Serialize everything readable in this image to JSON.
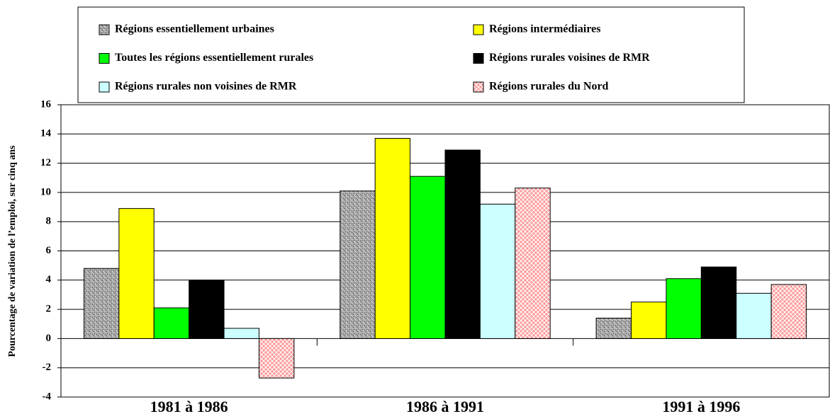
{
  "chart_data": {
    "type": "bar",
    "y_label": "Pourcentage de variation de l’emploi, sur cinq ans",
    "categories": [
      "1981 à 1986",
      "1986 à 1991",
      "1991 à 1996"
    ],
    "series": [
      {
        "name": "Régions essentiellement urbaines",
        "color": "#a6a6a6",
        "texture": "speckle",
        "values": [
          4.8,
          10.1,
          1.4
        ]
      },
      {
        "name": "Régions intermédiaires",
        "color": "#ffff00",
        "values": [
          8.9,
          13.7,
          2.5
        ]
      },
      {
        "name": "Toutes les régions essentiellement rurales",
        "color": "#00ff00",
        "values": [
          2.1,
          11.1,
          4.1
        ]
      },
      {
        "name": "Régions rurales voisines de RMR",
        "color": "#000000",
        "values": [
          4.0,
          12.9,
          4.9
        ]
      },
      {
        "name": "Régions rurales non voisines de RMR",
        "color": "#ccffff",
        "values": [
          0.7,
          9.2,
          3.1
        ]
      },
      {
        "name": "Régions rurales du Nord",
        "color": "#ff9999",
        "texture": "crosshatch",
        "values": [
          -2.7,
          10.3,
          3.7
        ]
      }
    ],
    "ylim": [
      -4,
      16
    ],
    "yticks": [
      -4,
      -2,
      0,
      2,
      4,
      6,
      8,
      10,
      12,
      14,
      16
    ],
    "grid": true
  }
}
